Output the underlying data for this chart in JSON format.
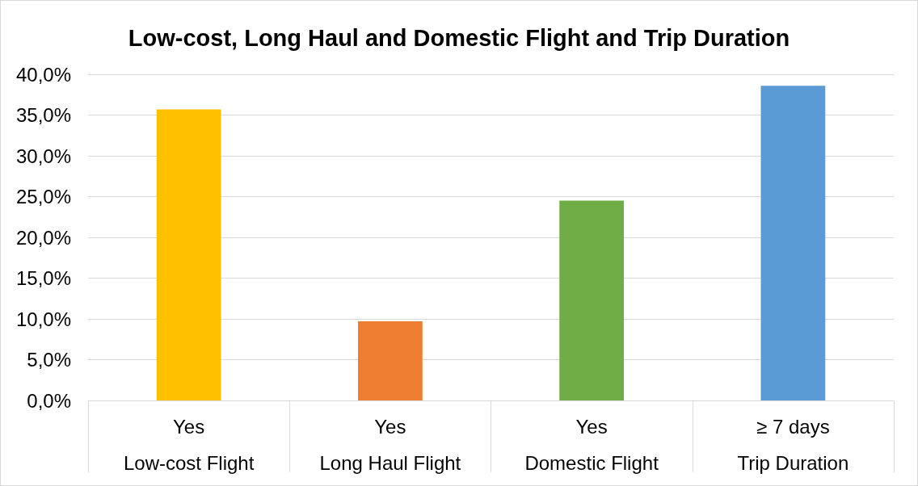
{
  "chart_data": {
    "type": "bar",
    "title": "Low-cost, Long Haul and Domestic Flight and Trip Duration",
    "categories": [
      "Yes\nLow-cost Flight",
      "Yes\nLong Haul Flight",
      "Yes\nDomestic Flight",
      "≥ 7 days\nTrip Duration"
    ],
    "values": [
      35.7,
      9.7,
      24.5,
      38.6
    ],
    "colors": [
      "#ffc000",
      "#ed7d31",
      "#70ad47",
      "#5b9bd5"
    ],
    "ylim": [
      0,
      40
    ],
    "yticks": [
      {
        "value": 0,
        "label": "0,0%"
      },
      {
        "value": 5,
        "label": "5,0%"
      },
      {
        "value": 10,
        "label": "10,0%"
      },
      {
        "value": 15,
        "label": "15,0%"
      },
      {
        "value": 20,
        "label": "20,0%"
      },
      {
        "value": 25,
        "label": "25,0%"
      },
      {
        "value": 30,
        "label": "30,0%"
      },
      {
        "value": 35,
        "label": "35,0%"
      },
      {
        "value": 40,
        "label": "40,0%"
      }
    ],
    "grid": "y"
  }
}
